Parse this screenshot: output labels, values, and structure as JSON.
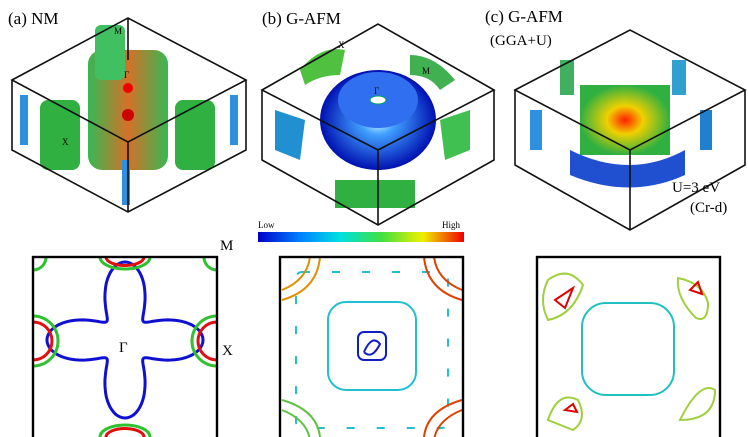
{
  "panels": [
    {
      "title": "(a) NM",
      "labels": [
        "M",
        "Γ",
        "X"
      ]
    },
    {
      "title": "(b) G-AFM",
      "labels": [
        "X",
        "M",
        "Γ"
      ]
    },
    {
      "title": "(c) G-AFM",
      "subtitle": "(GGA+U)",
      "annotation": [
        "U=3 eV",
        "(Cr-d)"
      ]
    }
  ],
  "colorbar": {
    "low": "Low",
    "high": "High"
  },
  "slice_labels": [
    "M",
    "X",
    "Γ"
  ]
}
